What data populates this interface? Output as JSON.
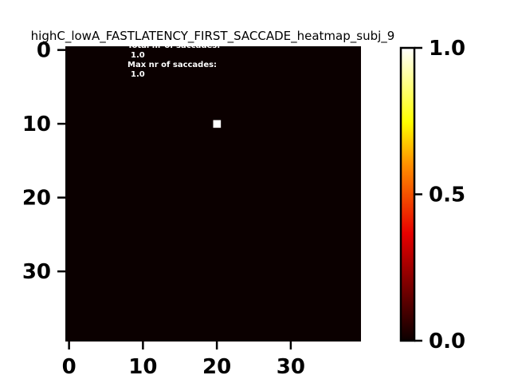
{
  "chart_data": {
    "type": "heatmap",
    "title": "highC_lowA_FASTLATENCY_FIRST_SACCADE_heatmap_subj_9",
    "grid_size": [
      40,
      40
    ],
    "background_value": 0.0,
    "cells": [
      {
        "x": 20,
        "y": 10,
        "value": 1.0
      }
    ],
    "x_ticks": [
      0,
      10,
      20,
      30
    ],
    "y_ticks": [
      0,
      10,
      20,
      30
    ],
    "x_tick_labels": [
      "0",
      "10",
      "20",
      "30"
    ],
    "y_tick_labels": [
      "0",
      "10",
      "20",
      "30"
    ],
    "xlim": [
      -0.5,
      39.5
    ],
    "ylim": [
      39.5,
      -0.5
    ],
    "annotations": [
      "Total nr of saccades:",
      "1.0",
      "Max nr of saccades:",
      "1.0"
    ],
    "colorbar": {
      "colormap": "hot",
      "min": 0.0,
      "max": 1.0,
      "ticks": [
        0.0,
        0.5,
        1.0
      ],
      "tick_labels": [
        "0.0",
        "0.5",
        "1.0"
      ]
    },
    "colors": {
      "background_cell": "#0b0000",
      "max_cell": "#ffffff",
      "colormap_stops": [
        "#0b0000",
        "#e60000",
        "#ffa600",
        "#ffff00",
        "#ffffff"
      ]
    }
  }
}
